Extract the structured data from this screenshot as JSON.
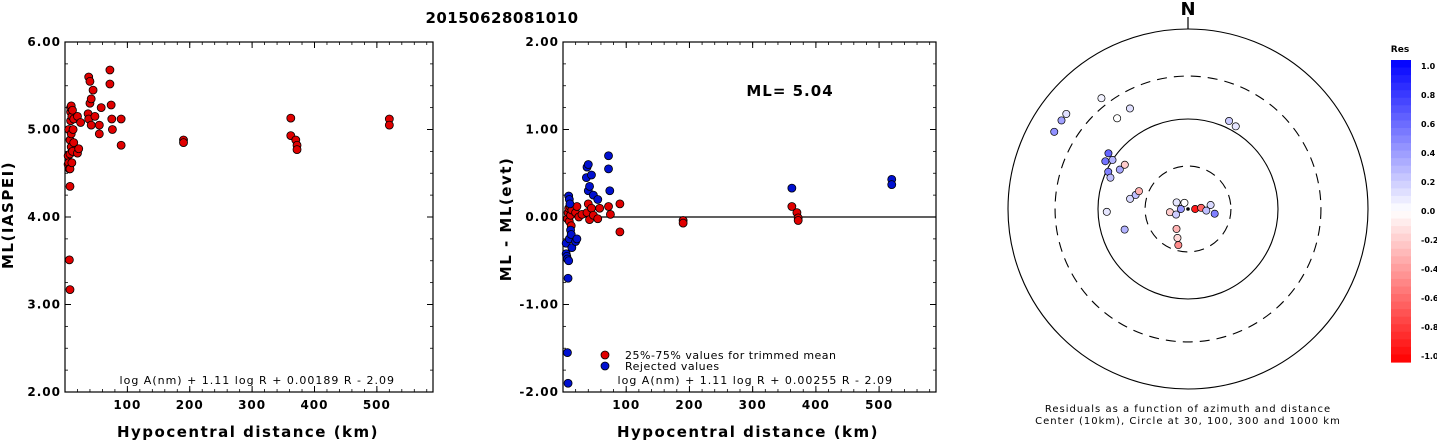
{
  "title": "20150628081010",
  "colors": {
    "red": "#e00000",
    "blue": "#0010d0",
    "frame": "#000000"
  },
  "chart_data": [
    {
      "type": "scatter",
      "xlabel": "Hypocentral distance (km)",
      "ylabel": "ML(IASPEI)",
      "xlim": [
        0,
        590
      ],
      "ylim": [
        2.0,
        6.0
      ],
      "xticks": [
        100,
        200,
        300,
        400,
        500
      ],
      "yticks": [
        "2.00",
        "3.00",
        "4.00",
        "5.00",
        "6.00"
      ],
      "formula": "log A(nm) + 1.11 log R + 0.00189 R - 2.09",
      "series": [
        {
          "color": "red",
          "points": [
            [
              5,
              4.6
            ],
            [
              5,
              4.7
            ],
            [
              6,
              4.62
            ],
            [
              6,
              5.0
            ],
            [
              7,
              4.55
            ],
            [
              7,
              3.51
            ],
            [
              8,
              3.17
            ],
            [
              8,
              4.35
            ],
            [
              8,
              4.55
            ],
            [
              8,
              4.72
            ],
            [
              8,
              4.88
            ],
            [
              9,
              5.1
            ],
            [
              9,
              5.2
            ],
            [
              9,
              5.25
            ],
            [
              10,
              5.27
            ],
            [
              10,
              4.8
            ],
            [
              10,
              4.95
            ],
            [
              11,
              5.15
            ],
            [
              11,
              4.62
            ],
            [
              12,
              5.22
            ],
            [
              12,
              4.75
            ],
            [
              13,
              5.0
            ],
            [
              14,
              5.12
            ],
            [
              14,
              4.85
            ],
            [
              20,
              4.73
            ],
            [
              20,
              5.15
            ],
            [
              22,
              4.78
            ],
            [
              25,
              5.08
            ],
            [
              37,
              5.18
            ],
            [
              38,
              5.6
            ],
            [
              38,
              5.12
            ],
            [
              40,
              5.55
            ],
            [
              40,
              5.3
            ],
            [
              42,
              5.35
            ],
            [
              42,
              5.05
            ],
            [
              45,
              5.45
            ],
            [
              48,
              5.15
            ],
            [
              55,
              5.05
            ],
            [
              55,
              4.95
            ],
            [
              58,
              5.25
            ],
            [
              72,
              5.68
            ],
            [
              72,
              5.52
            ],
            [
              74,
              5.28
            ],
            [
              75,
              5.12
            ],
            [
              76,
              5.0
            ],
            [
              90,
              5.12
            ],
            [
              90,
              4.82
            ],
            [
              190,
              4.88
            ],
            [
              190,
              4.85
            ],
            [
              362,
              5.13
            ],
            [
              362,
              4.93
            ],
            [
              370,
              4.88
            ],
            [
              372,
              4.82
            ],
            [
              372,
              4.77
            ],
            [
              520,
              5.12
            ],
            [
              520,
              5.05
            ]
          ]
        }
      ]
    },
    {
      "type": "scatter",
      "xlabel": "Hypocentral distance (km)",
      "ylabel": "ML - ML(evt)",
      "xlim": [
        0,
        590
      ],
      "ylim": [
        -2.0,
        2.0
      ],
      "xticks": [
        100,
        200,
        300,
        400,
        500
      ],
      "yticks": [
        "-2.00",
        "-1.00",
        "0.00",
        "1.00",
        "2.00"
      ],
      "annotation": "ML= 5.04",
      "formula": "log A(nm) + 1.11 log R + 0.00255 R - 2.09",
      "zero_line": 0,
      "legend": [
        {
          "color": "red",
          "label": "25%-75% values for trimmed mean"
        },
        {
          "color": "blue",
          "label": "Rejected values"
        }
      ],
      "series": [
        {
          "name": "25%-75% values for trimmed mean",
          "color": "red",
          "points": [
            [
              7,
              -0.02
            ],
            [
              8,
              0.05
            ],
            [
              9,
              0.1
            ],
            [
              10,
              -0.05
            ],
            [
              11,
              0.12
            ],
            [
              12,
              0.02
            ],
            [
              13,
              -0.1
            ],
            [
              14,
              0.08
            ],
            [
              20,
              0.05
            ],
            [
              22,
              0.12
            ],
            [
              25,
              0.0
            ],
            [
              30,
              0.03
            ],
            [
              38,
              0.05
            ],
            [
              40,
              0.15
            ],
            [
              42,
              -0.03
            ],
            [
              45,
              0.1
            ],
            [
              48,
              0.02
            ],
            [
              55,
              -0.02
            ],
            [
              58,
              0.1
            ],
            [
              72,
              0.12
            ],
            [
              75,
              0.03
            ],
            [
              90,
              0.15
            ],
            [
              90,
              -0.17
            ],
            [
              190,
              -0.04
            ],
            [
              190,
              -0.07
            ],
            [
              362,
              0.12
            ],
            [
              370,
              0.05
            ],
            [
              372,
              -0.01
            ],
            [
              372,
              -0.04
            ]
          ]
        },
        {
          "name": "Rejected values",
          "color": "blue",
          "points": [
            [
              5,
              -0.42
            ],
            [
              5,
              -0.3
            ],
            [
              6,
              -0.45
            ],
            [
              7,
              -0.48
            ],
            [
              7,
              -1.55
            ],
            [
              8,
              -1.9
            ],
            [
              8,
              -0.7
            ],
            [
              9,
              -0.5
            ],
            [
              9,
              0.24
            ],
            [
              10,
              0.2
            ],
            [
              10,
              -0.25
            ],
            [
              11,
              0.15
            ],
            [
              12,
              -0.15
            ],
            [
              13,
              -0.2
            ],
            [
              14,
              -0.35
            ],
            [
              20,
              -0.28
            ],
            [
              22,
              -0.25
            ],
            [
              37,
              0.45
            ],
            [
              38,
              0.57
            ],
            [
              40,
              0.6
            ],
            [
              40,
              0.3
            ],
            [
              42,
              0.35
            ],
            [
              45,
              0.48
            ],
            [
              48,
              0.25
            ],
            [
              55,
              0.2
            ],
            [
              72,
              0.7
            ],
            [
              72,
              0.55
            ],
            [
              74,
              0.3
            ],
            [
              362,
              0.33
            ],
            [
              520,
              0.43
            ],
            [
              520,
              0.37
            ]
          ]
        }
      ]
    }
  ],
  "polar": {
    "north_label": "N",
    "caption_line1": "Residuals as a function of azimuth and distance",
    "caption_line2": "Center (10km), Circle at 30, 100, 300 and 1000 km",
    "rings_km": [
      30,
      100,
      300,
      1000
    ],
    "stations": [
      {
        "az": 300,
        "dist": 520,
        "res": 0.43
      },
      {
        "az": 305,
        "dist": 520,
        "res": 0.37
      },
      {
        "az": 308,
        "dist": 520,
        "res": 0.12
      },
      {
        "az": 322,
        "dist": 365,
        "res": 0.05
      },
      {
        "az": 330,
        "dist": 195,
        "res": 0.12
      },
      {
        "az": 322,
        "dist": 190,
        "res": 0.0
      },
      {
        "az": 305,
        "dist": 120,
        "res": 0.6
      },
      {
        "az": 300,
        "dist": 115,
        "res": 0.55
      },
      {
        "az": 303,
        "dist": 100,
        "res": 0.3
      },
      {
        "az": 295,
        "dist": 95,
        "res": 0.5
      },
      {
        "az": 292,
        "dist": 85,
        "res": 0.25
      },
      {
        "az": 300,
        "dist": 75,
        "res": 0.35
      },
      {
        "az": 305,
        "dist": 72,
        "res": -0.2
      },
      {
        "az": 268,
        "dist": 80,
        "res": 0.1
      },
      {
        "az": 252,
        "dist": 55,
        "res": 0.3
      },
      {
        "az": 30,
        "dist": 115,
        "res": 0.1
      },
      {
        "az": 25,
        "dist": 120,
        "res": 0.2
      },
      {
        "az": 280,
        "dist": 45,
        "res": 0.15
      },
      {
        "az": 285,
        "dist": 40,
        "res": 0.25
      },
      {
        "az": 290,
        "dist": 38,
        "res": -0.3
      },
      {
        "az": 270,
        "dist": 12,
        "res": 0.4
      },
      {
        "az": 300,
        "dist": 14,
        "res": 0.1
      },
      {
        "az": 330,
        "dist": 12,
        "res": 0.0
      },
      {
        "az": 260,
        "dist": 16,
        "res": -0.2
      },
      {
        "az": 245,
        "dist": 14,
        "res": 0.2
      },
      {
        "az": 210,
        "dist": 18,
        "res": -0.3
      },
      {
        "az": 200,
        "dist": 22,
        "res": -0.15
      },
      {
        "az": 195,
        "dist": 26,
        "res": -0.45
      },
      {
        "az": 90,
        "dist": 12,
        "res": -0.9
      },
      {
        "az": 85,
        "dist": 14,
        "res": -0.6
      },
      {
        "az": 95,
        "dist": 16,
        "res": 0.25
      },
      {
        "az": 80,
        "dist": 18,
        "res": 0.15
      },
      {
        "az": 100,
        "dist": 20,
        "res": 0.5
      }
    ],
    "colorbar": {
      "title": "Res",
      "ticks": [
        "1.0",
        "0.8",
        "0.6",
        "0.4",
        "0.2",
        "0.0",
        "-0.2",
        "-0.4",
        "-0.6",
        "-0.8",
        "-1.0"
      ]
    }
  }
}
